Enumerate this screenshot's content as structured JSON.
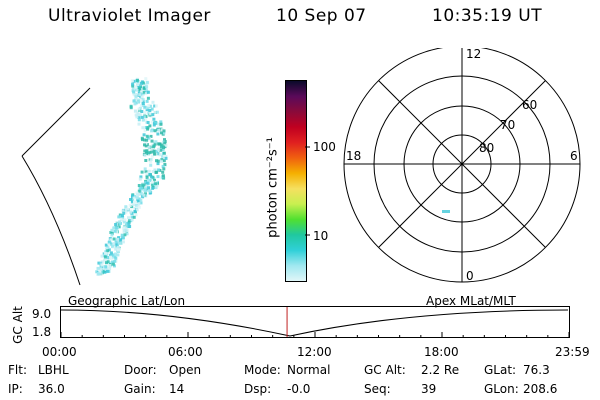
{
  "header": {
    "instrument": "Ultraviolet Imager",
    "date": "10 Sep 07",
    "time": "10:35:19 UT"
  },
  "colorbar": {
    "unit_label": "photon cm⁻²s⁻¹",
    "tick_labels": [
      "100",
      "10"
    ],
    "colors": [
      "#0a0a2a",
      "#5a0a5a",
      "#8a0a3a",
      "#c00020",
      "#e02020",
      "#f06010",
      "#f5b000",
      "#f5e060",
      "#c8f050",
      "#50e030",
      "#20c8a0",
      "#30d0d8",
      "#a0e8f0",
      "#e0f6f8"
    ]
  },
  "polar": {
    "mlt_labels": {
      "top": "12",
      "left": "18",
      "right": "6",
      "bottom": "0"
    },
    "lat_labels": [
      "60",
      "70",
      "80"
    ]
  },
  "timeline": {
    "y_axis_label": "GC Alt",
    "y_ticks": [
      "9.0",
      "1.8"
    ],
    "left_title": "Geographic Lat/Lon",
    "right_title": "Apex MLat/MLT",
    "x_ticks": [
      "00:00",
      "06:00",
      "12:00",
      "18:00",
      "23:59"
    ],
    "current_time_fraction": 0.445,
    "marker_color": "#c02020"
  },
  "info": {
    "row1": [
      {
        "key": "Flt:",
        "value": "LBHL"
      },
      {
        "key": "Door:",
        "value": "Open"
      },
      {
        "key": "Mode:",
        "value": "Normal"
      },
      {
        "key": "GC Alt:",
        "value": "2.2 Re"
      },
      {
        "key": "GLat:",
        "value": "76.3"
      }
    ],
    "row2": [
      {
        "key": "IP:",
        "value": "36.0"
      },
      {
        "key": "Gain:",
        "value": "14"
      },
      {
        "key": "Dsp:",
        "value": "-0.0"
      },
      {
        "key": "Seq:",
        "value": "39"
      },
      {
        "key": "GLon:",
        "value": "208.6"
      }
    ]
  }
}
